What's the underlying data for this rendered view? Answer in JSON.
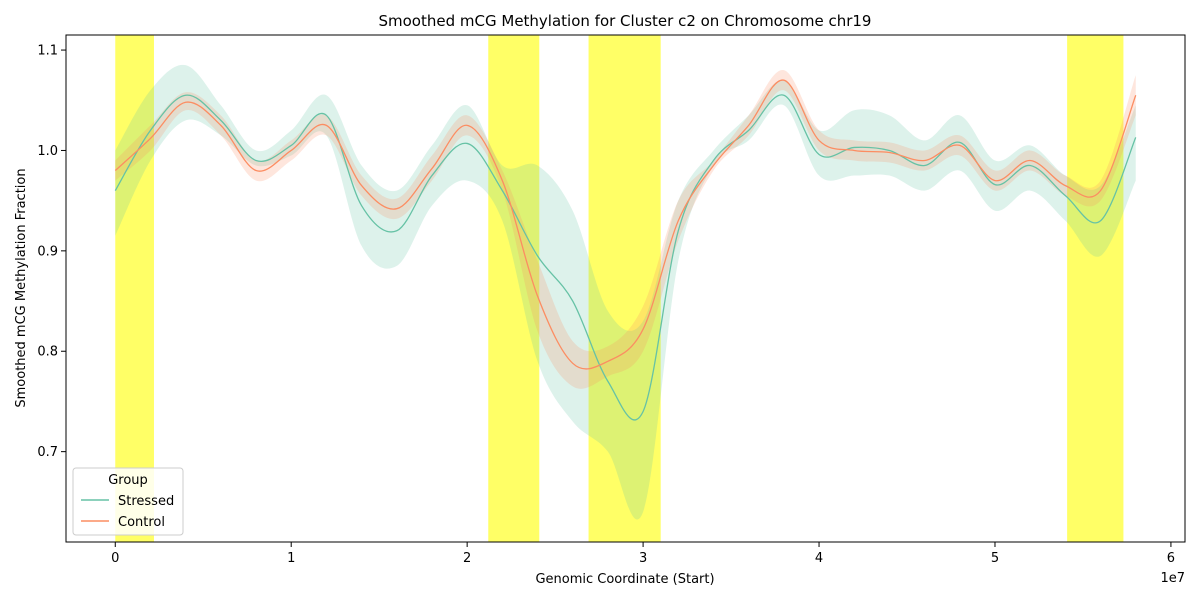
{
  "chart_data": {
    "type": "line",
    "title": "Smoothed mCG Methylation for Cluster c2 on Chromosome chr19",
    "xlabel": "Genomic Coordinate (Start)",
    "ylabel": "Smoothed mCG Methylation Fraction",
    "x_offset_label": "1e7",
    "xlim": [
      -0.28,
      6.08
    ],
    "ylim": [
      0.61,
      1.115
    ],
    "x_ticks": [
      0,
      1,
      2,
      3,
      4,
      5,
      6
    ],
    "x_tick_labels": [
      "0",
      "1",
      "2",
      "3",
      "4",
      "5",
      "6"
    ],
    "y_ticks": [
      0.7,
      0.8,
      0.9,
      1.0,
      1.1
    ],
    "y_tick_labels": [
      "0.7",
      "0.8",
      "0.9",
      "1.0",
      "1.1"
    ],
    "grid": false,
    "legend": {
      "title": "Group",
      "placement": "lower-left"
    },
    "highlight_color": "#ffff00",
    "highlight_regions": [
      [
        0.0,
        0.22
      ],
      [
        2.12,
        2.41
      ],
      [
        2.69,
        3.1
      ],
      [
        5.41,
        5.73
      ]
    ],
    "x": [
      0,
      0.2,
      0.4,
      0.6,
      0.8,
      1.0,
      1.2,
      1.4,
      1.6,
      1.8,
      2.0,
      2.2,
      2.4,
      2.6,
      2.8,
      3.0,
      3.2,
      3.4,
      3.6,
      3.8,
      4.0,
      4.2,
      4.4,
      4.6,
      4.8,
      5.0,
      5.2,
      5.4,
      5.6,
      5.8
    ],
    "series": [
      {
        "name": "Stressed",
        "color": "#66c2a5",
        "values": [
          0.96,
          1.02,
          1.055,
          1.03,
          0.99,
          1.005,
          1.035,
          0.945,
          0.92,
          0.975,
          1.007,
          0.96,
          0.895,
          0.85,
          0.77,
          0.74,
          0.92,
          0.99,
          1.02,
          1.055,
          0.996,
          1.003,
          1.0,
          0.985,
          1.008,
          0.966,
          0.985,
          0.955,
          0.93,
          1.013
        ],
        "ci_low": [
          0.915,
          0.99,
          1.03,
          1.015,
          0.985,
          0.995,
          1.015,
          0.905,
          0.885,
          0.945,
          0.97,
          0.93,
          0.79,
          0.73,
          0.7,
          0.64,
          0.89,
          0.985,
          1.01,
          1.045,
          0.975,
          0.975,
          0.975,
          0.96,
          0.98,
          0.94,
          0.96,
          0.93,
          0.895,
          0.97
        ],
        "ci_high": [
          1.0,
          1.06,
          1.085,
          1.045,
          1.0,
          1.02,
          1.055,
          0.985,
          0.96,
          1.005,
          1.045,
          0.985,
          0.985,
          0.94,
          0.84,
          0.83,
          0.95,
          1.0,
          1.035,
          1.07,
          1.02,
          1.04,
          1.035,
          1.01,
          1.035,
          0.99,
          1.005,
          0.975,
          0.965,
          1.045
        ]
      },
      {
        "name": "Control",
        "color": "#fc8d62",
        "values": [
          0.98,
          1.012,
          1.048,
          1.025,
          0.98,
          1.0,
          1.025,
          0.965,
          0.942,
          0.982,
          1.025,
          0.97,
          0.855,
          0.788,
          0.79,
          0.822,
          0.93,
          0.985,
          1.025,
          1.07,
          1.01,
          1.0,
          0.998,
          0.99,
          1.005,
          0.97,
          0.99,
          0.965,
          0.96,
          1.055
        ],
        "ci_low": [
          0.97,
          1.0,
          1.04,
          1.015,
          0.97,
          0.99,
          1.015,
          0.955,
          0.932,
          0.97,
          1.015,
          0.96,
          0.82,
          0.765,
          0.775,
          0.8,
          0.91,
          0.98,
          1.015,
          1.06,
          1.0,
          0.99,
          0.988,
          0.98,
          0.995,
          0.96,
          0.98,
          0.955,
          0.95,
          1.035
        ],
        "ci_high": [
          0.99,
          1.025,
          1.058,
          1.035,
          0.99,
          1.01,
          1.035,
          0.975,
          0.952,
          0.995,
          1.035,
          0.98,
          0.89,
          0.81,
          0.805,
          0.845,
          0.95,
          0.99,
          1.035,
          1.08,
          1.02,
          1.01,
          1.008,
          1.0,
          1.015,
          0.98,
          1.0,
          0.975,
          0.97,
          1.075
        ]
      }
    ]
  }
}
